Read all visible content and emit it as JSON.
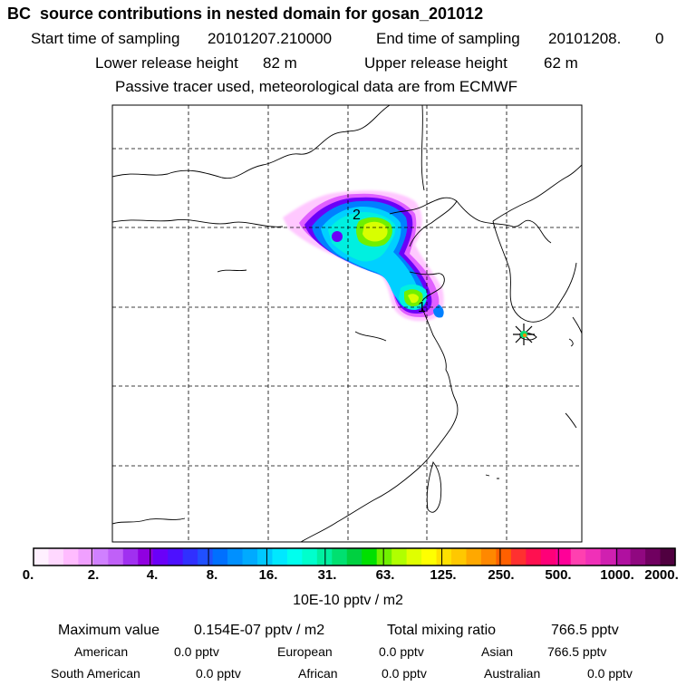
{
  "header": {
    "title": "BC  source contributions in nested domain for gosan_201012",
    "start_label": "Start time of sampling",
    "start_value": "20101207.210000",
    "end_label": "End time of sampling",
    "end_value": "20101208.",
    "end_tail": "0",
    "lower_label": "Lower release height",
    "lower_value": "82 m",
    "upper_label": "Upper release height",
    "upper_value": "62 m",
    "note": "Passive tracer used, meteorological data are from ECMWF"
  },
  "map": {
    "label_2": "2",
    "label_1": "1",
    "receptor": "gosan receptor star"
  },
  "colorbar": {
    "ticks": [
      "0.",
      "2.",
      "4.",
      "8.",
      "16.",
      "31.",
      "63.",
      "125.",
      "250.",
      "500.",
      "1000.",
      "2000."
    ],
    "colors": [
      "#fff0ff",
      "#ffd8ff",
      "#ffbcff",
      "#f0a0ff",
      "#d080ff",
      "#c060f8",
      "#a030f0",
      "#9000e0",
      "#6a00f8",
      "#4d10ff",
      "#3030ff",
      "#2050ff",
      "#0070ff",
      "#0090ff",
      "#00aaff",
      "#00c8ff",
      "#00e8ff",
      "#00ffee",
      "#00ffcc",
      "#00f0a0",
      "#00e070",
      "#00d040",
      "#00e000",
      "#70f000",
      "#b0ff00",
      "#e0ff00",
      "#ffff00",
      "#ffe000",
      "#ffc800",
      "#ffa800",
      "#ff8800",
      "#ff6000",
      "#ff3030",
      "#ff1050",
      "#ff0078",
      "#ff0098",
      "#ff40b0",
      "#f030b8",
      "#d020b0",
      "#b010a0",
      "#900880",
      "#700060",
      "#500040"
    ],
    "unit": "10E-10 pptv / m2"
  },
  "stats": {
    "max_label": "Maximum value",
    "max_value": "0.154E-07 pptv / m2",
    "total_label": "Total mixing ratio",
    "total_value": "766.5 pptv"
  },
  "regions": [
    {
      "name": "American",
      "value": "0.0 pptv"
    },
    {
      "name": "European",
      "value": "0.0 pptv"
    },
    {
      "name": "Asian",
      "value": "766.5 pptv"
    },
    {
      "name": "South American",
      "value": "0.0 pptv"
    },
    {
      "name": "African",
      "value": "0.0 pptv"
    },
    {
      "name": "Australian",
      "value": "0.0 pptv"
    }
  ]
}
